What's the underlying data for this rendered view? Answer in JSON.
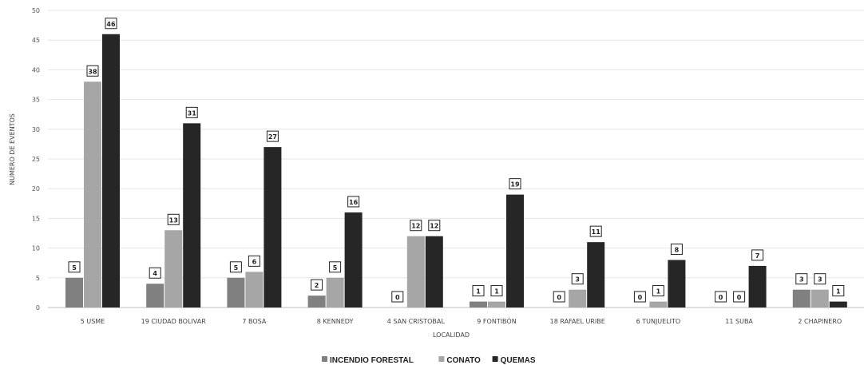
{
  "chart_data": {
    "type": "bar",
    "title": "",
    "xlabel": "LOCALIDAD",
    "ylabel": "NUMERO DE EVENTOS",
    "ylim": [
      0,
      50
    ],
    "yticks": [
      "0",
      "5",
      "10",
      "15",
      "20",
      "25",
      "30",
      "35",
      "40",
      "45",
      "50"
    ],
    "grid": true,
    "legend_position": "bottom",
    "categories": [
      "5 USME",
      "19 CIUDAD BOLIVAR",
      "7 BOSA",
      "8 KENNEDY",
      "4 SAN CRISTOBAL",
      "9 FONTIBÓN",
      "18 RAFAEL URIBE",
      "6 TUNJUELITO",
      "11 SUBA",
      "2 CHAPINERO"
    ],
    "series": [
      {
        "name": "INCENDIO FORESTAL",
        "color": "#808080",
        "values": [
          5,
          4,
          5,
          2,
          0,
          1,
          0,
          0,
          0,
          3
        ]
      },
      {
        "name": "CONATO",
        "color": "#a6a6a6",
        "values": [
          38,
          13,
          6,
          5,
          12,
          1,
          3,
          1,
          0,
          3
        ]
      },
      {
        "name": "QUEMAS",
        "color": "#262626",
        "values": [
          46,
          31,
          27,
          16,
          12,
          19,
          11,
          8,
          7,
          1
        ]
      }
    ]
  }
}
